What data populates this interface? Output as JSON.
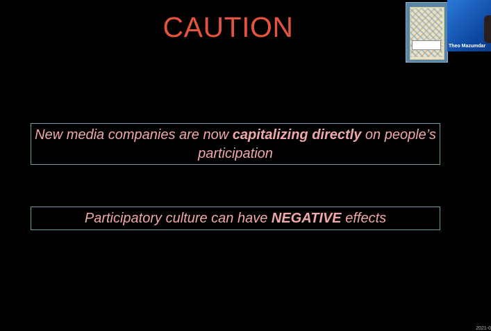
{
  "slide": {
    "title": "CAUTION",
    "callout_1": {
      "text_before": "New media companies are now ",
      "text_bold": "capitalizing directly",
      "text_after": " on people’s participation"
    },
    "callout_2": {
      "text_before": "Participatory culture can have ",
      "text_bold": "NEGATIVE",
      "text_after": " effects"
    }
  },
  "video": {
    "participant_name": "Theo Mazumdar",
    "shared_image": "book-cover-thumbnail"
  },
  "footer": {
    "timestamp": "2021-0"
  },
  "colors": {
    "background": "#000000",
    "title": "#e4533f",
    "callout_text": "#f0a8aa",
    "callout_border": "#6f9aa0",
    "video_tile": "#1565c0"
  }
}
